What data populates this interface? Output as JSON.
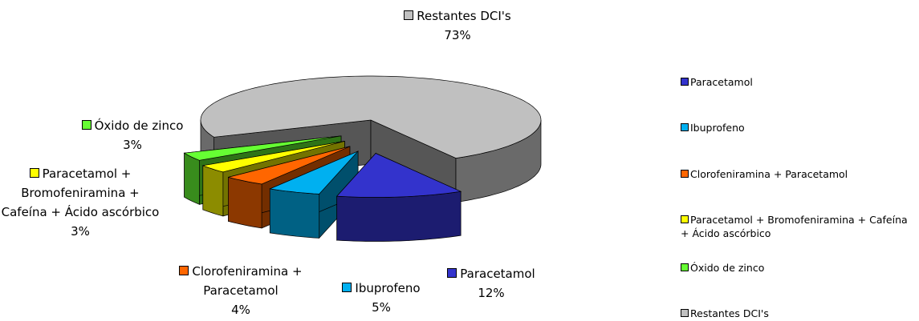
{
  "chart_data": {
    "type": "pie",
    "categories": [
      "Paracetamol",
      "Ibuprofeno",
      "Clorofeniramina + Paracetamol",
      "Paracetamol + Bromofeniramina + Cafeína + Ácido ascórbico",
      "Óxido de zinco",
      "Restantes DCI's"
    ],
    "values": [
      12,
      5,
      4,
      3,
      3,
      73
    ],
    "value_labels": [
      "12%",
      "5%",
      "4%",
      "3%",
      "3%",
      "73%"
    ],
    "colors": [
      "#3333cc",
      "#00b0f0",
      "#ff6600",
      "#ffff00",
      "#66ff33",
      "#c0c0c0"
    ],
    "legend": "right"
  }
}
